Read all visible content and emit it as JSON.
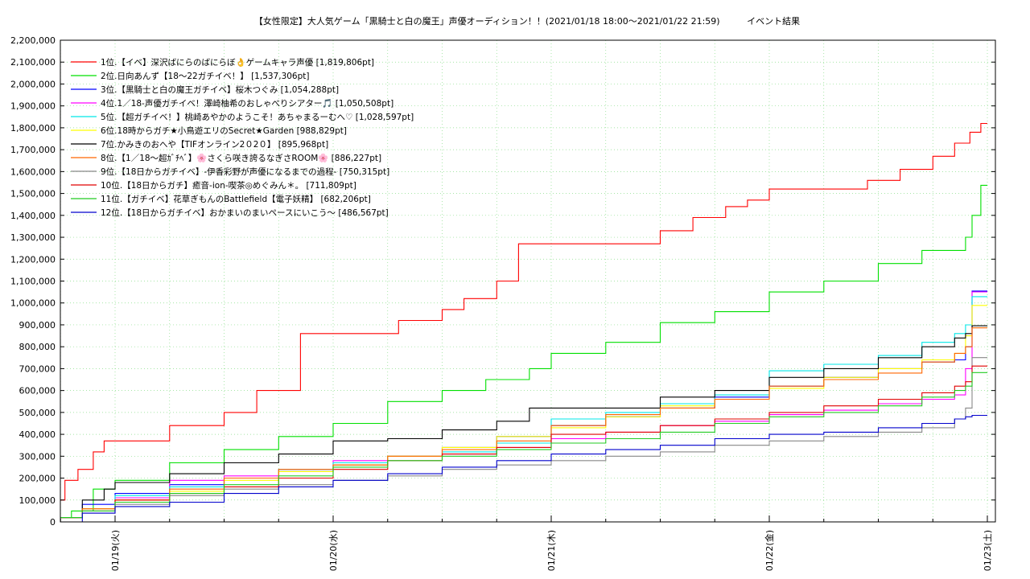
{
  "chart_data": {
    "type": "line",
    "title": "【女性限定】大人気ゲーム「黒騎士と白の魔王」声優オーディション！！(2021/01/18 18:00〜2021/01/22 21:59)",
    "subtitle": "イベント結果",
    "xlabel": "",
    "ylabel": "",
    "x_unit": "days since 2021/01/18 00:00 (axis labels show dates)",
    "xlim": [
      0.75,
      5.0
    ],
    "ylim": [
      0,
      2200000
    ],
    "y_ticks": [
      0,
      100000,
      200000,
      300000,
      400000,
      500000,
      600000,
      700000,
      800000,
      900000,
      1000000,
      1100000,
      1200000,
      1300000,
      1400000,
      1500000,
      1600000,
      1700000,
      1800000,
      1900000,
      2000000,
      2100000,
      2200000
    ],
    "y_tick_labels": [
      "0",
      "100,000",
      "200,000",
      "300,000",
      "400,000",
      "500,000",
      "600,000",
      "700,000",
      "800,000",
      "900,000",
      "1,000,000",
      "1,100,000",
      "1,200,000",
      "1,300,000",
      "1,400,000",
      "1,500,000",
      "1,600,000",
      "1,700,000",
      "1,800,000",
      "1,900,000",
      "2,000,000",
      "2,100,000",
      "2,200,000"
    ],
    "x_ticks": [
      1,
      2,
      3,
      4,
      5
    ],
    "x_tick_labels": [
      "01/19(火)",
      "01/20(水)",
      "01/21(木)",
      "01/22(金)",
      "01/23(土)"
    ],
    "grid": true,
    "legend_position": "top-left",
    "series": [
      {
        "name": "1位.【イベ】深沢ばにらのばにらぼ👌ゲームキャラ声優 [1,819,806pt]",
        "color": "#ff0000",
        "x": [
          0.75,
          0.77,
          0.83,
          0.9,
          0.95,
          1.0,
          1.25,
          1.5,
          1.65,
          1.85,
          2.0,
          2.05,
          2.3,
          2.5,
          2.6,
          2.75,
          2.85,
          3.0,
          3.15,
          3.5,
          3.65,
          3.8,
          3.9,
          4.0,
          4.3,
          4.45,
          4.6,
          4.75,
          4.85,
          4.92,
          4.97,
          5.0
        ],
        "y": [
          100000,
          190000,
          240000,
          320000,
          370000,
          370000,
          440000,
          500000,
          600000,
          860000,
          860000,
          860000,
          920000,
          970000,
          1020000,
          1100000,
          1270000,
          1270000,
          1270000,
          1330000,
          1390000,
          1440000,
          1470000,
          1520000,
          1520000,
          1560000,
          1610000,
          1670000,
          1730000,
          1780000,
          1820000,
          1820000
        ]
      },
      {
        "name": "2位.日向あんず【18〜22ガチイベ！】 [1,537,306pt]",
        "color": "#00e000",
        "x": [
          0.75,
          0.8,
          0.9,
          1.0,
          1.25,
          1.5,
          1.75,
          2.0,
          2.25,
          2.5,
          2.7,
          2.9,
          3.0,
          3.25,
          3.5,
          3.75,
          4.0,
          4.25,
          4.5,
          4.7,
          4.85,
          4.9,
          4.93,
          4.97,
          5.0
        ],
        "y": [
          20000,
          50000,
          150000,
          190000,
          270000,
          330000,
          390000,
          450000,
          550000,
          600000,
          650000,
          700000,
          770000,
          820000,
          910000,
          960000,
          1050000,
          1100000,
          1180000,
          1240000,
          1240000,
          1300000,
          1400000,
          1537306,
          1537306
        ]
      },
      {
        "name": "3位.【黒騎士と白の魔王ガチイベ】桜木つぐみ [1,054,288pt]",
        "color": "#0000ff",
        "x": [
          0.75,
          0.85,
          1.0,
          1.25,
          1.5,
          1.75,
          2.0,
          2.25,
          2.5,
          2.75,
          3.0,
          3.25,
          3.5,
          3.75,
          4.0,
          4.25,
          4.5,
          4.7,
          4.85,
          4.9,
          4.93,
          5.0
        ],
        "y": [
          20000,
          80000,
          130000,
          170000,
          200000,
          230000,
          260000,
          300000,
          340000,
          390000,
          440000,
          480000,
          520000,
          570000,
          620000,
          660000,
          700000,
          730000,
          740000,
          800000,
          1054288,
          1054288
        ]
      },
      {
        "name": "4位.1／18-声優ガチイベ！澤崎柚希のおしゃべりシアター🎵 [1,050,508pt]",
        "color": "#ff00ff",
        "x": [
          0.75,
          0.85,
          1.0,
          1.25,
          1.5,
          1.75,
          2.0,
          2.25,
          2.5,
          2.75,
          3.0,
          3.25,
          3.5,
          3.75,
          4.0,
          4.25,
          4.5,
          4.7,
          4.85,
          4.9,
          4.93,
          5.0
        ],
        "y": [
          20000,
          60000,
          110000,
          190000,
          210000,
          240000,
          280000,
          300000,
          310000,
          340000,
          380000,
          410000,
          440000,
          460000,
          490000,
          510000,
          540000,
          560000,
          580000,
          700000,
          1050508,
          1050508
        ]
      },
      {
        "name": "5位.【超ガチイベ！】桃崎あやかのようこそ！あちゃまるーむへ♡ [1,028,597pt]",
        "color": "#00e8e8",
        "x": [
          0.75,
          0.85,
          1.0,
          1.25,
          1.5,
          1.75,
          2.0,
          2.25,
          2.5,
          2.75,
          3.0,
          3.25,
          3.5,
          3.75,
          4.0,
          4.25,
          4.5,
          4.7,
          4.85,
          4.9,
          4.93,
          5.0
        ],
        "y": [
          20000,
          60000,
          120000,
          160000,
          200000,
          240000,
          270000,
          300000,
          320000,
          360000,
          470000,
          500000,
          540000,
          580000,
          690000,
          720000,
          760000,
          820000,
          860000,
          900000,
          1028597,
          1028597
        ]
      },
      {
        "name": "6位.18時からガチ★小鳥遊エリのSecret★Garden [988,829pt]",
        "color": "#ffff00",
        "x": [
          0.75,
          0.85,
          1.0,
          1.25,
          1.5,
          1.75,
          2.0,
          2.25,
          2.5,
          2.75,
          3.0,
          3.25,
          3.5,
          3.75,
          4.0,
          4.25,
          4.5,
          4.7,
          4.85,
          4.9,
          4.93,
          5.0
        ],
        "y": [
          20000,
          60000,
          100000,
          140000,
          190000,
          230000,
          260000,
          300000,
          340000,
          390000,
          430000,
          480000,
          530000,
          560000,
          610000,
          660000,
          700000,
          740000,
          770000,
          850000,
          988829,
          988829
        ]
      },
      {
        "name": "7位.かみきのおへや【TIFオンライン2０2０】 [895,968pt]",
        "color": "#000000",
        "x": [
          0.75,
          0.85,
          0.95,
          1.0,
          1.25,
          1.5,
          1.75,
          2.0,
          2.25,
          2.5,
          2.75,
          2.9,
          3.0,
          3.25,
          3.5,
          3.75,
          4.0,
          4.25,
          4.5,
          4.7,
          4.85,
          4.9,
          4.93,
          5.0
        ],
        "y": [
          20000,
          100000,
          150000,
          180000,
          220000,
          270000,
          310000,
          370000,
          380000,
          420000,
          460000,
          520000,
          520000,
          520000,
          570000,
          600000,
          660000,
          700000,
          750000,
          800000,
          840000,
          860000,
          895968,
          895968
        ]
      },
      {
        "name": "8位.【1／18〜超ｶﾞﾁﾍﾞ】🌸さくら咲き誇るなぎさROOM🌸 [886,227pt]",
        "color": "#ff6600",
        "x": [
          0.75,
          0.85,
          1.0,
          1.25,
          1.5,
          1.75,
          2.0,
          2.25,
          2.5,
          2.75,
          3.0,
          3.25,
          3.5,
          3.75,
          4.0,
          4.25,
          4.5,
          4.7,
          4.85,
          4.9,
          4.93,
          5.0
        ],
        "y": [
          20000,
          60000,
          100000,
          150000,
          200000,
          240000,
          260000,
          300000,
          330000,
          370000,
          440000,
          490000,
          520000,
          560000,
          620000,
          650000,
          680000,
          730000,
          770000,
          800000,
          886227,
          886227
        ]
      },
      {
        "name": "9位.【18日からガチイベ】-伊香彩野が声優になるまでの過程- [750,315pt]",
        "color": "#888888",
        "x": [
          0.75,
          0.85,
          1.0,
          1.25,
          1.5,
          1.75,
          2.0,
          2.25,
          2.5,
          2.75,
          3.0,
          3.25,
          3.5,
          3.75,
          4.0,
          4.25,
          4.5,
          4.7,
          4.85,
          4.9,
          4.93,
          5.0
        ],
        "y": [
          20000,
          40000,
          80000,
          120000,
          150000,
          170000,
          190000,
          210000,
          240000,
          260000,
          280000,
          300000,
          320000,
          350000,
          370000,
          390000,
          410000,
          430000,
          470000,
          520000,
          750315,
          750315
        ]
      },
      {
        "name": "10位.【18日からガチ】癒音-ion-喫茶◎めぐみん＊。 [711,809pt]",
        "color": "#e00000",
        "x": [
          0.75,
          0.85,
          1.0,
          1.25,
          1.5,
          1.75,
          2.0,
          2.25,
          2.5,
          2.75,
          3.0,
          3.25,
          3.5,
          3.75,
          4.0,
          4.25,
          4.5,
          4.7,
          4.85,
          4.9,
          4.93,
          5.0
        ],
        "y": [
          20000,
          50000,
          100000,
          130000,
          160000,
          200000,
          240000,
          280000,
          310000,
          340000,
          400000,
          410000,
          440000,
          470000,
          500000,
          530000,
          560000,
          590000,
          620000,
          640000,
          711809,
          711809
        ]
      },
      {
        "name": "11位.【ガチイベ】花草ぎもんのBattlefield【電子妖精】 [682,206pt]",
        "color": "#22cc22",
        "x": [
          0.75,
          0.85,
          1.0,
          1.25,
          1.5,
          1.75,
          2.0,
          2.25,
          2.5,
          2.75,
          3.0,
          3.25,
          3.5,
          3.75,
          4.0,
          4.25,
          4.5,
          4.7,
          4.85,
          4.9,
          4.93,
          5.0
        ],
        "y": [
          20000,
          50000,
          90000,
          130000,
          170000,
          210000,
          250000,
          280000,
          300000,
          330000,
          360000,
          380000,
          410000,
          450000,
          480000,
          500000,
          530000,
          570000,
          600000,
          620000,
          682206,
          682206
        ]
      },
      {
        "name": "12位.【18日からガチイベ】おかまいのまいペースにいこう〜 [486,567pt]",
        "color": "#0000cc",
        "x": [
          0.75,
          0.85,
          1.0,
          1.25,
          1.5,
          1.75,
          2.0,
          2.25,
          2.5,
          2.75,
          3.0,
          3.25,
          3.5,
          3.75,
          4.0,
          4.25,
          4.5,
          4.7,
          4.85,
          4.9,
          4.93,
          5.0
        ],
        "y": [
          0,
          40000,
          70000,
          90000,
          130000,
          160000,
          190000,
          220000,
          250000,
          280000,
          310000,
          330000,
          350000,
          380000,
          400000,
          410000,
          430000,
          450000,
          470000,
          480000,
          486567,
          486567
        ]
      }
    ]
  }
}
